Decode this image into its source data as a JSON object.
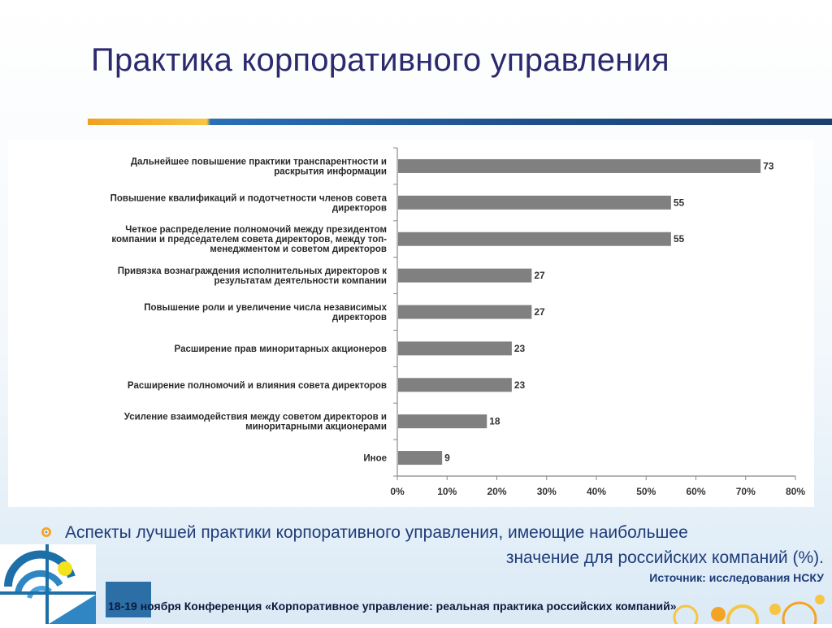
{
  "slide": {
    "title": "Практика корпоративного управления",
    "caption_line1": "Аспекты лучшей практики корпоративного управления, имеющие наибольшее",
    "caption_line2": "значение для российских компаний (%).",
    "source": "Источник: исследования НСКУ",
    "footer": "18-19 ноября Конференция «Корпоративное управление: реальная практика российских компаний»"
  },
  "colors": {
    "title": "#2c2a6e",
    "bar": "#808080",
    "caption": "#1e3c78",
    "footer_box": "#2b6fa6"
  },
  "chart_data": {
    "type": "bar",
    "orientation": "horizontal",
    "categories": [
      [
        "Дальнейшее повышение практики транспарентности и",
        "раскрытия информации"
      ],
      [
        "Повышение квалификаций и подотчетности членов совета",
        "директоров"
      ],
      [
        "Четкое распределение полномочий между президентом",
        "компании и председателем совета директоров, между топ-",
        "менеджментом и советом директоров"
      ],
      [
        "Привязка вознаграждения исполнительных директоров к",
        "результатам деятельности компании"
      ],
      [
        "Повышение роли и увеличение числа независимых",
        "директоров"
      ],
      [
        "Расширение прав миноритарных акционеров"
      ],
      [
        "Расширение полномочий и влияния совета директоров"
      ],
      [
        "Усиление взаимодействия между советом директоров и",
        "миноритарными акционерами"
      ],
      [
        "Иное"
      ]
    ],
    "values": [
      73,
      55,
      55,
      27,
      27,
      23,
      23,
      18,
      9
    ],
    "data_labels": [
      "73",
      "55",
      "55",
      "27",
      "27",
      "23",
      "23",
      "18",
      "9"
    ],
    "x_ticks": [
      "0%",
      "10%",
      "20%",
      "30%",
      "40%",
      "50%",
      "60%",
      "70%",
      "80%"
    ],
    "xlim": [
      0,
      80
    ],
    "grid": false,
    "legend": "none"
  }
}
